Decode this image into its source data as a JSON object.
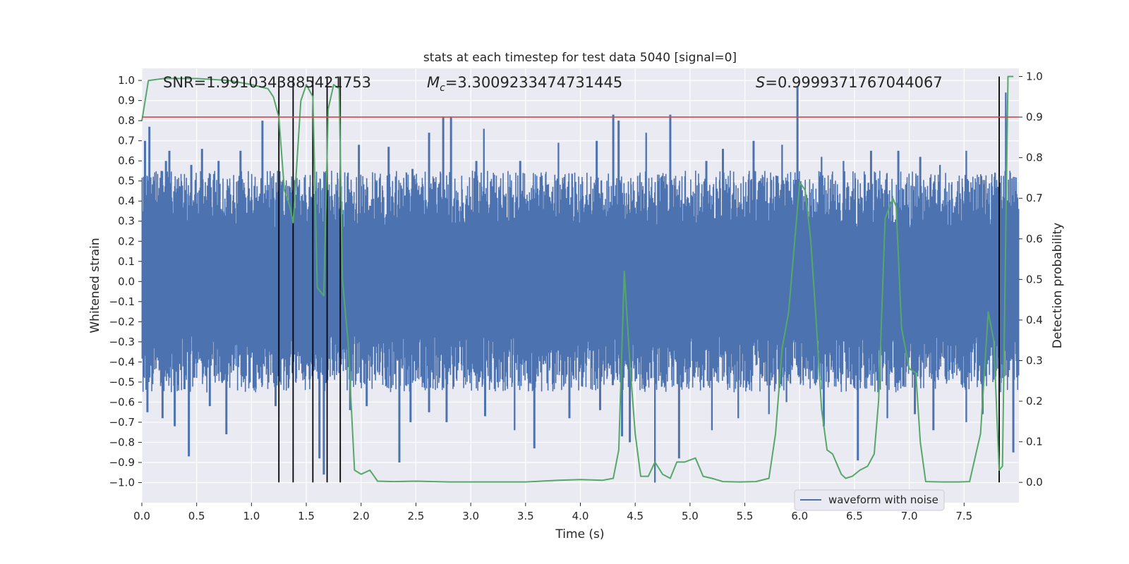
{
  "chart_data": {
    "type": "line",
    "title": "stats at each timestep for test data 5040 [signal=0]",
    "xlabel": "Time (s)",
    "ylabel_left": "Whitened strain",
    "ylabel_right": "Detection probability",
    "xlim": [
      0.0,
      8.0
    ],
    "ylim_left": [
      -1.1,
      1.06
    ],
    "ylim_right": [
      -0.05,
      1.02
    ],
    "x_ticks": [
      "0.0",
      "0.5",
      "1.0",
      "1.5",
      "2.0",
      "2.5",
      "3.0",
      "3.5",
      "4.0",
      "4.5",
      "5.0",
      "5.5",
      "6.0",
      "6.5",
      "7.0",
      "7.5"
    ],
    "x_tick_values": [
      0.0,
      0.5,
      1.0,
      1.5,
      2.0,
      2.5,
      3.0,
      3.5,
      4.0,
      4.5,
      5.0,
      5.5,
      6.0,
      6.5,
      7.0,
      7.5
    ],
    "y_left_ticks": [
      "1.0",
      "0.9",
      "0.8",
      "0.7",
      "0.6",
      "0.5",
      "0.4",
      "0.3",
      "0.2",
      "0.1",
      "0.0",
      "−0.1",
      "−0.2",
      "−0.3",
      "−0.4",
      "−0.5",
      "−0.6",
      "−0.7",
      "−0.8",
      "−0.9",
      "−1.0"
    ],
    "y_left_tick_values": [
      1.0,
      0.9,
      0.8,
      0.7,
      0.6,
      0.5,
      0.4,
      0.3,
      0.2,
      0.1,
      0.0,
      -0.1,
      -0.2,
      -0.3,
      -0.4,
      -0.5,
      -0.6,
      -0.7,
      -0.8,
      -0.9,
      -1.0
    ],
    "y_right_ticks": [
      "1.0",
      "0.9",
      "0.8",
      "0.7",
      "0.6",
      "0.5",
      "0.4",
      "0.3",
      "0.2",
      "0.1",
      "0.0"
    ],
    "y_right_tick_values": [
      1.0,
      0.9,
      0.8,
      0.7,
      0.6,
      0.5,
      0.4,
      0.3,
      0.2,
      0.1,
      0.0
    ],
    "grid": true,
    "legend_position": "lower-right",
    "annotations": {
      "snr": "SNR=1.9910343885421753",
      "mc_symbol": "M",
      "mc_sub": "c",
      "mc_value": "=3.3009233474731445",
      "s_symbol": "S",
      "s_value": "=0.9999371767044067"
    },
    "threshold": {
      "value": 0.9,
      "axis": "right",
      "color": "#c44e52"
    },
    "vertical_markers": {
      "x": [
        1.25,
        1.38,
        1.56,
        1.69,
        1.81,
        7.82
      ],
      "color": "#000000"
    },
    "series": [
      {
        "name": "waveform with noise",
        "axis": "left",
        "color": "#4c72b0",
        "envelope_typical": [
          -0.48,
          0.48
        ],
        "peaks_up": [
          {
            "x": 0.03,
            "y": 0.7
          },
          {
            "x": 0.07,
            "y": 0.77
          },
          {
            "x": 0.22,
            "y": 0.6
          },
          {
            "x": 0.25,
            "y": 0.65
          },
          {
            "x": 0.45,
            "y": 0.58
          },
          {
            "x": 0.55,
            "y": 0.66
          },
          {
            "x": 0.7,
            "y": 0.6
          },
          {
            "x": 0.9,
            "y": 0.65
          },
          {
            "x": 1.1,
            "y": 0.8
          },
          {
            "x": 1.98,
            "y": 0.68
          },
          {
            "x": 2.25,
            "y": 0.67
          },
          {
            "x": 2.47,
            "y": 0.56
          },
          {
            "x": 2.62,
            "y": 0.74
          },
          {
            "x": 2.75,
            "y": 0.82
          },
          {
            "x": 2.82,
            "y": 0.82
          },
          {
            "x": 3.05,
            "y": 0.6
          },
          {
            "x": 3.12,
            "y": 0.76
          },
          {
            "x": 3.45,
            "y": 0.6
          },
          {
            "x": 3.8,
            "y": 0.69
          },
          {
            "x": 4.15,
            "y": 0.7
          },
          {
            "x": 4.3,
            "y": 0.83
          },
          {
            "x": 4.35,
            "y": 0.8
          },
          {
            "x": 4.6,
            "y": 0.74
          },
          {
            "x": 4.82,
            "y": 0.83
          },
          {
            "x": 5.15,
            "y": 0.6
          },
          {
            "x": 5.3,
            "y": 0.66
          },
          {
            "x": 5.58,
            "y": 0.7
          },
          {
            "x": 5.84,
            "y": 0.68
          },
          {
            "x": 5.98,
            "y": 0.97
          },
          {
            "x": 6.2,
            "y": 0.62
          },
          {
            "x": 6.4,
            "y": 0.6
          },
          {
            "x": 6.65,
            "y": 0.65
          },
          {
            "x": 6.9,
            "y": 0.65
          },
          {
            "x": 7.1,
            "y": 0.62
          },
          {
            "x": 7.28,
            "y": 0.58
          },
          {
            "x": 7.52,
            "y": 0.65
          },
          {
            "x": 7.88,
            "y": 0.94
          }
        ],
        "peaks_down": [
          {
            "x": 0.05,
            "y": -0.65
          },
          {
            "x": 0.19,
            "y": -0.68
          },
          {
            "x": 0.3,
            "y": -0.72
          },
          {
            "x": 0.43,
            "y": -0.87
          },
          {
            "x": 0.62,
            "y": -0.62
          },
          {
            "x": 0.77,
            "y": -0.76
          },
          {
            "x": 1.22,
            "y": -0.62
          },
          {
            "x": 1.62,
            "y": -0.88
          },
          {
            "x": 1.66,
            "y": -0.96
          },
          {
            "x": 1.9,
            "y": -0.64
          },
          {
            "x": 2.05,
            "y": -0.62
          },
          {
            "x": 2.35,
            "y": -0.9
          },
          {
            "x": 2.45,
            "y": -0.7
          },
          {
            "x": 2.62,
            "y": -0.65
          },
          {
            "x": 2.78,
            "y": -0.7
          },
          {
            "x": 3.13,
            "y": -0.67
          },
          {
            "x": 3.4,
            "y": -0.74
          },
          {
            "x": 3.58,
            "y": -0.83
          },
          {
            "x": 3.9,
            "y": -0.68
          },
          {
            "x": 4.18,
            "y": -0.64
          },
          {
            "x": 4.38,
            "y": -0.77
          },
          {
            "x": 4.45,
            "y": -0.8
          },
          {
            "x": 4.68,
            "y": -1.0
          },
          {
            "x": 4.9,
            "y": -0.88
          },
          {
            "x": 5.2,
            "y": -0.74
          },
          {
            "x": 5.44,
            "y": -0.68
          },
          {
            "x": 5.72,
            "y": -0.66
          },
          {
            "x": 5.88,
            "y": -0.6
          },
          {
            "x": 6.22,
            "y": -0.72
          },
          {
            "x": 6.53,
            "y": -0.89
          },
          {
            "x": 6.8,
            "y": -0.68
          },
          {
            "x": 7.05,
            "y": -0.66
          },
          {
            "x": 7.22,
            "y": -0.74
          },
          {
            "x": 7.52,
            "y": -0.7
          },
          {
            "x": 7.67,
            "y": -0.66
          },
          {
            "x": 7.95,
            "y": -0.85
          }
        ]
      },
      {
        "name": "",
        "axis": "right",
        "color": "#55a868",
        "x": [
          0.0,
          0.06,
          0.2,
          0.5,
          0.8,
          1.0,
          1.15,
          1.2,
          1.25,
          1.3,
          1.35,
          1.38,
          1.45,
          1.5,
          1.56,
          1.6,
          1.66,
          1.7,
          1.75,
          1.8,
          1.83,
          1.88,
          1.94,
          2.0,
          2.08,
          2.15,
          2.3,
          2.5,
          2.8,
          3.0,
          3.5,
          3.8,
          4.0,
          4.2,
          4.3,
          4.35,
          4.4,
          4.45,
          4.5,
          4.55,
          4.62,
          4.68,
          4.75,
          4.82,
          4.88,
          4.95,
          5.05,
          5.12,
          5.2,
          5.3,
          5.45,
          5.6,
          5.72,
          5.78,
          5.84,
          5.9,
          6.0,
          6.05,
          6.1,
          6.15,
          6.2,
          6.25,
          6.3,
          6.38,
          6.42,
          6.48,
          6.55,
          6.62,
          6.68,
          6.72,
          6.78,
          6.85,
          6.88,
          6.93,
          7.0,
          7.06,
          7.1,
          7.15,
          7.3,
          7.45,
          7.55,
          7.65,
          7.72,
          7.77,
          7.82,
          7.85,
          7.9,
          7.95
        ],
        "y": [
          0.89,
          0.99,
          0.995,
          0.995,
          0.99,
          0.98,
          0.97,
          0.95,
          0.9,
          0.72,
          0.68,
          0.64,
          0.94,
          0.98,
          0.95,
          0.48,
          0.46,
          0.92,
          0.98,
          0.97,
          0.5,
          0.35,
          0.03,
          0.02,
          0.03,
          0.003,
          0.002,
          0.003,
          0.001,
          0.001,
          0.001,
          0.005,
          0.007,
          0.005,
          0.01,
          0.08,
          0.52,
          0.3,
          0.12,
          0.015,
          0.015,
          0.05,
          0.02,
          0.01,
          0.05,
          0.05,
          0.06,
          0.015,
          0.01,
          0.002,
          0.001,
          0.002,
          0.01,
          0.12,
          0.33,
          0.42,
          0.74,
          0.72,
          0.6,
          0.4,
          0.18,
          0.08,
          0.07,
          0.02,
          0.01,
          0.015,
          0.03,
          0.04,
          0.07,
          0.2,
          0.65,
          0.7,
          0.68,
          0.38,
          0.28,
          0.27,
          0.1,
          0.002,
          0.001,
          0.001,
          0.002,
          0.12,
          0.42,
          0.35,
          0.03,
          0.04,
          1.0,
          1.0
        ]
      }
    ]
  }
}
